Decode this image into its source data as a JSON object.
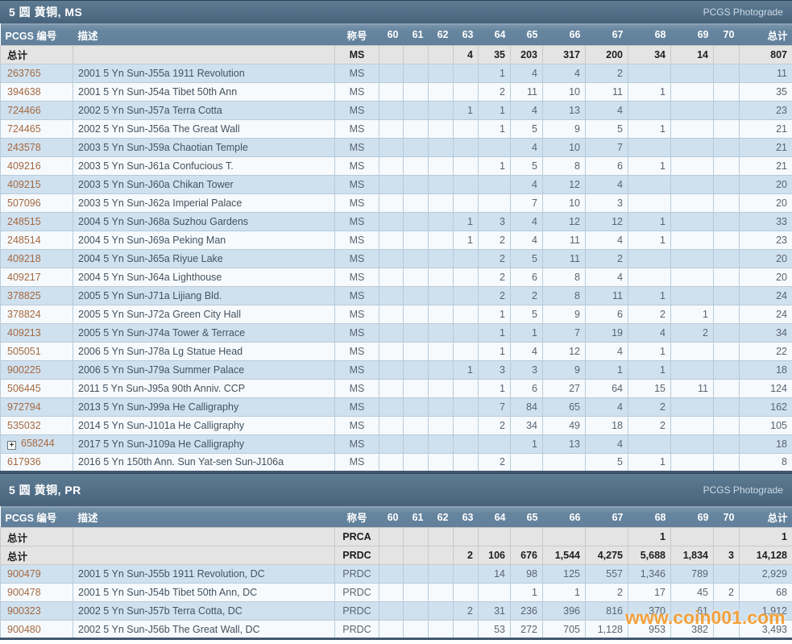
{
  "watermark_text": "www.coin001.com",
  "table_columns": {
    "pcgs_label": "PCGS 编号",
    "desc_label": "描述",
    "designation_label": "称号",
    "total_label": "总计",
    "grades": [
      "60",
      "61",
      "62",
      "63",
      "64",
      "65",
      "66",
      "67",
      "68",
      "69",
      "70"
    ]
  },
  "colors": {
    "section_bar": "#4d6982",
    "header_row": "#66859f",
    "row_blue": "#cfe1ef",
    "row_white": "#f6fafd",
    "totals_row": "#e3e4e3",
    "pcgs_link": "#a5683f",
    "watermark": "#f3921a"
  },
  "sections": [
    {
      "title": "5 圆 黄铜, MS",
      "photograde_label": "PCGS Photograde",
      "summary_rows": [
        {
          "label": "总计",
          "desc": "",
          "designation": "MS",
          "grades": [
            "",
            "",
            "",
            "4",
            "35",
            "203",
            "317",
            "200",
            "34",
            "14",
            ""
          ],
          "total": "807"
        }
      ],
      "rows": [
        {
          "pcgs": "263765",
          "expandable": false,
          "desc": "2001 5 Yn Sun-J55a 1911 Revolution",
          "designation": "MS",
          "grades": [
            "",
            "",
            "",
            "",
            "1",
            "4",
            "4",
            "2",
            "",
            "",
            ""
          ],
          "total": "11"
        },
        {
          "pcgs": "394638",
          "expandable": false,
          "desc": "2001 5 Yn Sun-J54a Tibet 50th Ann",
          "designation": "MS",
          "grades": [
            "",
            "",
            "",
            "",
            "2",
            "11",
            "10",
            "11",
            "1",
            "",
            ""
          ],
          "total": "35"
        },
        {
          "pcgs": "724466",
          "expandable": false,
          "desc": "2002 5 Yn Sun-J57a Terra Cotta",
          "designation": "MS",
          "grades": [
            "",
            "",
            "",
            "1",
            "1",
            "4",
            "13",
            "4",
            "",
            "",
            ""
          ],
          "total": "23"
        },
        {
          "pcgs": "724465",
          "expandable": false,
          "desc": "2002 5 Yn Sun-J56a The Great Wall",
          "designation": "MS",
          "grades": [
            "",
            "",
            "",
            "",
            "1",
            "5",
            "9",
            "5",
            "1",
            "",
            ""
          ],
          "total": "21"
        },
        {
          "pcgs": "243578",
          "expandable": false,
          "desc": "2003 5 Yn Sun-J59a Chaotian Temple",
          "designation": "MS",
          "grades": [
            "",
            "",
            "",
            "",
            "",
            "4",
            "10",
            "7",
            "",
            "",
            ""
          ],
          "total": "21"
        },
        {
          "pcgs": "409216",
          "expandable": false,
          "desc": "2003 5 Yn Sun-J61a Confucious T.",
          "designation": "MS",
          "grades": [
            "",
            "",
            "",
            "",
            "1",
            "5",
            "8",
            "6",
            "1",
            "",
            ""
          ],
          "total": "21"
        },
        {
          "pcgs": "409215",
          "expandable": false,
          "desc": "2003 5 Yn Sun-J60a Chikan Tower",
          "designation": "MS",
          "grades": [
            "",
            "",
            "",
            "",
            "",
            "4",
            "12",
            "4",
            "",
            "",
            ""
          ],
          "total": "20"
        },
        {
          "pcgs": "507096",
          "expandable": false,
          "desc": "2003 5 Yn Sun-J62a Imperial Palace",
          "designation": "MS",
          "grades": [
            "",
            "",
            "",
            "",
            "",
            "7",
            "10",
            "3",
            "",
            "",
            ""
          ],
          "total": "20"
        },
        {
          "pcgs": "248515",
          "expandable": false,
          "desc": "2004 5 Yn Sun-J68a Suzhou Gardens",
          "designation": "MS",
          "grades": [
            "",
            "",
            "",
            "1",
            "3",
            "4",
            "12",
            "12",
            "1",
            "",
            ""
          ],
          "total": "33"
        },
        {
          "pcgs": "248514",
          "expandable": false,
          "desc": "2004 5 Yn Sun-J69a Peking Man",
          "designation": "MS",
          "grades": [
            "",
            "",
            "",
            "1",
            "2",
            "4",
            "11",
            "4",
            "1",
            "",
            ""
          ],
          "total": "23"
        },
        {
          "pcgs": "409218",
          "expandable": false,
          "desc": "2004 5 Yn Sun-J65a Riyue Lake",
          "designation": "MS",
          "grades": [
            "",
            "",
            "",
            "",
            "2",
            "5",
            "11",
            "2",
            "",
            "",
            ""
          ],
          "total": "20"
        },
        {
          "pcgs": "409217",
          "expandable": false,
          "desc": "2004 5 Yn Sun-J64a Lighthouse",
          "designation": "MS",
          "grades": [
            "",
            "",
            "",
            "",
            "2",
            "6",
            "8",
            "4",
            "",
            "",
            ""
          ],
          "total": "20"
        },
        {
          "pcgs": "378825",
          "expandable": false,
          "desc": "2005 5 Yn Sun-J71a Lijiang Bld.",
          "designation": "MS",
          "grades": [
            "",
            "",
            "",
            "",
            "2",
            "2",
            "8",
            "11",
            "1",
            "",
            ""
          ],
          "total": "24"
        },
        {
          "pcgs": "378824",
          "expandable": false,
          "desc": "2005 5 Yn Sun-J72a Green City Hall",
          "designation": "MS",
          "grades": [
            "",
            "",
            "",
            "",
            "1",
            "5",
            "9",
            "6",
            "2",
            "1",
            ""
          ],
          "total": "24"
        },
        {
          "pcgs": "409213",
          "expandable": false,
          "desc": "2005 5 Yn Sun-J74a Tower & Terrace",
          "designation": "MS",
          "grades": [
            "",
            "",
            "",
            "",
            "1",
            "1",
            "7",
            "19",
            "4",
            "2",
            ""
          ],
          "total": "34"
        },
        {
          "pcgs": "505051",
          "expandable": false,
          "desc": "2006 5 Yn Sun-J78a Lg Statue Head",
          "designation": "MS",
          "grades": [
            "",
            "",
            "",
            "",
            "1",
            "4",
            "12",
            "4",
            "1",
            "",
            ""
          ],
          "total": "22"
        },
        {
          "pcgs": "900225",
          "expandable": false,
          "desc": "2006 5 Yn Sun-J79a Summer Palace",
          "designation": "MS",
          "grades": [
            "",
            "",
            "",
            "1",
            "3",
            "3",
            "9",
            "1",
            "1",
            "",
            ""
          ],
          "total": "18"
        },
        {
          "pcgs": "506445",
          "expandable": false,
          "desc": "2011 5 Yn Sun-J95a 90th Anniv. CCP",
          "designation": "MS",
          "grades": [
            "",
            "",
            "",
            "",
            "1",
            "6",
            "27",
            "64",
            "15",
            "11",
            ""
          ],
          "total": "124"
        },
        {
          "pcgs": "972794",
          "expandable": false,
          "desc": "2013 5 Yn Sun-J99a He Calligraphy",
          "designation": "MS",
          "grades": [
            "",
            "",
            "",
            "",
            "7",
            "84",
            "65",
            "4",
            "2",
            "",
            ""
          ],
          "total": "162"
        },
        {
          "pcgs": "535032",
          "expandable": false,
          "desc": "2014 5 Yn Sun-J101a He Calligraphy",
          "designation": "MS",
          "grades": [
            "",
            "",
            "",
            "",
            "2",
            "34",
            "49",
            "18",
            "2",
            "",
            ""
          ],
          "total": "105"
        },
        {
          "pcgs": "658244",
          "expandable": true,
          "desc": "2017 5 Yn Sun-J109a He Calligraphy",
          "designation": "MS",
          "grades": [
            "",
            "",
            "",
            "",
            "",
            "1",
            "13",
            "4",
            "",
            "",
            ""
          ],
          "total": "18"
        },
        {
          "pcgs": "617936",
          "expandable": false,
          "desc": "2016 5 Yn 150th Ann. Sun Yat-sen Sun-J106a",
          "designation": "MS",
          "grades": [
            "",
            "",
            "",
            "",
            "2",
            "",
            "",
            "5",
            "1",
            "",
            ""
          ],
          "total": "8"
        }
      ]
    },
    {
      "title": "5 圆 黄铜, PR",
      "photograde_label": "PCGS Photograde",
      "summary_rows": [
        {
          "label": "总计",
          "desc": "",
          "designation": "PRCA",
          "grades": [
            "",
            "",
            "",
            "",
            "",
            "",
            "",
            "",
            "1",
            "",
            ""
          ],
          "total": "1"
        },
        {
          "label": "总计",
          "desc": "",
          "designation": "PRDC",
          "grades": [
            "",
            "",
            "",
            "2",
            "106",
            "676",
            "1,544",
            "4,275",
            "5,688",
            "1,834",
            "3"
          ],
          "total": "14,128"
        }
      ],
      "rows": [
        {
          "pcgs": "900479",
          "expandable": false,
          "desc": "2001 5 Yn Sun-J55b 1911 Revolution, DC",
          "designation": "PRDC",
          "grades": [
            "",
            "",
            "",
            "",
            "14",
            "98",
            "125",
            "557",
            "1,346",
            "789",
            ""
          ],
          "total": "2,929"
        },
        {
          "pcgs": "900478",
          "expandable": false,
          "desc": "2001 5 Yn Sun-J54b Tibet 50th Ann, DC",
          "designation": "PRDC",
          "grades": [
            "",
            "",
            "",
            "",
            "",
            "1",
            "1",
            "2",
            "17",
            "45",
            "2"
          ],
          "total": "68"
        },
        {
          "pcgs": "900323",
          "expandable": false,
          "desc": "2002 5 Yn Sun-J57b Terra Cotta, DC",
          "designation": "PRDC",
          "grades": [
            "",
            "",
            "",
            "2",
            "31",
            "236",
            "396",
            "816",
            "370",
            "61",
            ""
          ],
          "total": "1,912"
        },
        {
          "pcgs": "900480",
          "expandable": false,
          "desc": "2002 5 Yn Sun-J56b The Great Wall, DC",
          "designation": "PRDC",
          "grades": [
            "",
            "",
            "",
            "",
            "53",
            "272",
            "705",
            "1,128",
            "953",
            "382",
            ""
          ],
          "total": "3,493"
        }
      ]
    }
  ]
}
